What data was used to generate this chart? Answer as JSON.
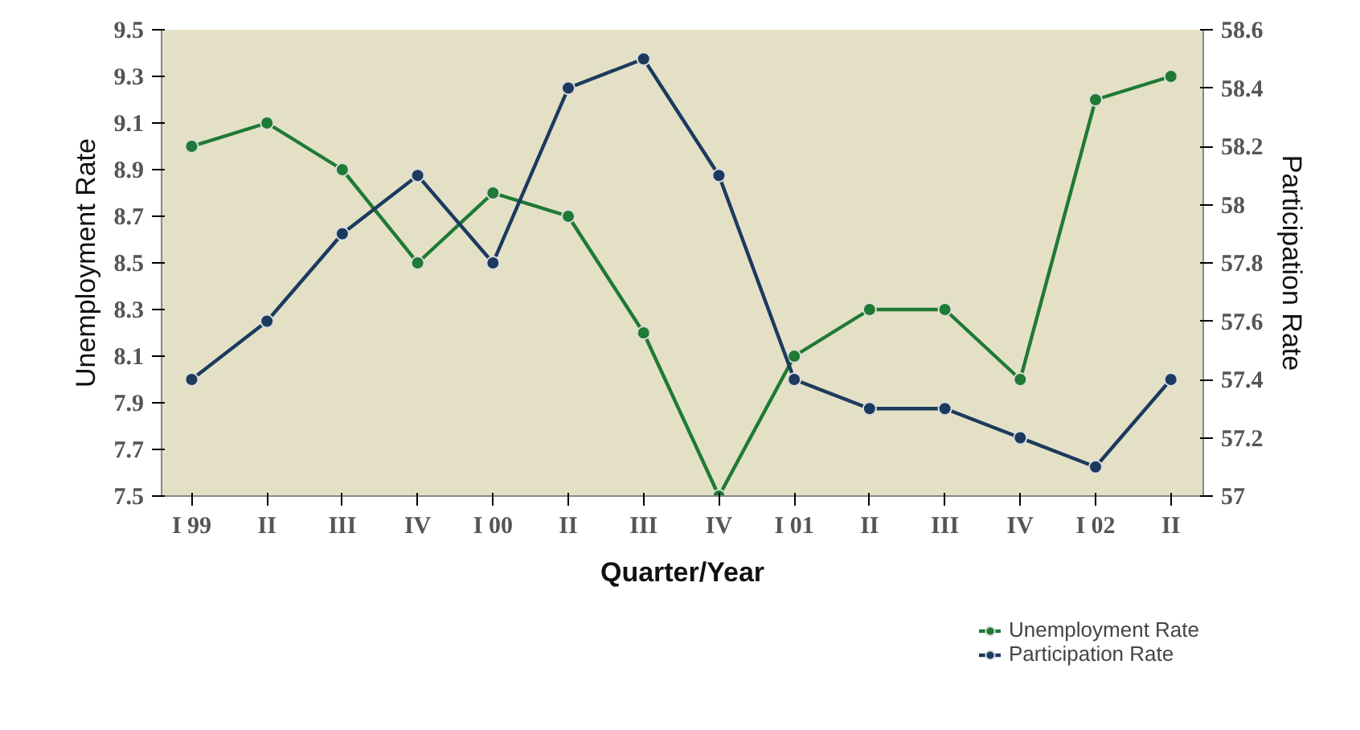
{
  "chart_data": {
    "type": "line",
    "xlabel": "Quarter/Year",
    "ylabel": "Unemployment Rate",
    "y2label": "Participation Rate",
    "categories": [
      "I 99",
      "II",
      "III",
      "IV",
      "I 00",
      "II",
      "III",
      "IV",
      "I 01",
      "II",
      "III",
      "IV",
      "I 02",
      "II"
    ],
    "series": [
      {
        "name": "Unemployment Rate",
        "color": "#1e7a34",
        "values": [
          9.0,
          9.1,
          8.9,
          8.5,
          8.8,
          8.7,
          8.2,
          7.5,
          8.1,
          8.3,
          8.3,
          8.0,
          9.2,
          9.3
        ]
      },
      {
        "name": "Participation Rate",
        "color": "#1b3a5e",
        "axis": "y2",
        "values": [
          57.4,
          57.6,
          57.9,
          58.1,
          57.8,
          58.4,
          58.5,
          58.1,
          57.4,
          57.3,
          57.3,
          57.2,
          57.1,
          57.4
        ]
      }
    ],
    "ylim": [
      7.5,
      9.5
    ],
    "yticks": [
      7.5,
      7.7,
      7.9,
      8.1,
      8.3,
      8.5,
      8.7,
      8.9,
      9.1,
      9.3,
      9.5
    ],
    "y2lim": [
      57,
      58.6
    ],
    "y2ticks": [
      57,
      57.2,
      57.4,
      57.6,
      57.8,
      58,
      58.2,
      58.4,
      58.6
    ],
    "grid": false,
    "legend": "bottom right",
    "marker": "circle",
    "line_style": "solid"
  }
}
